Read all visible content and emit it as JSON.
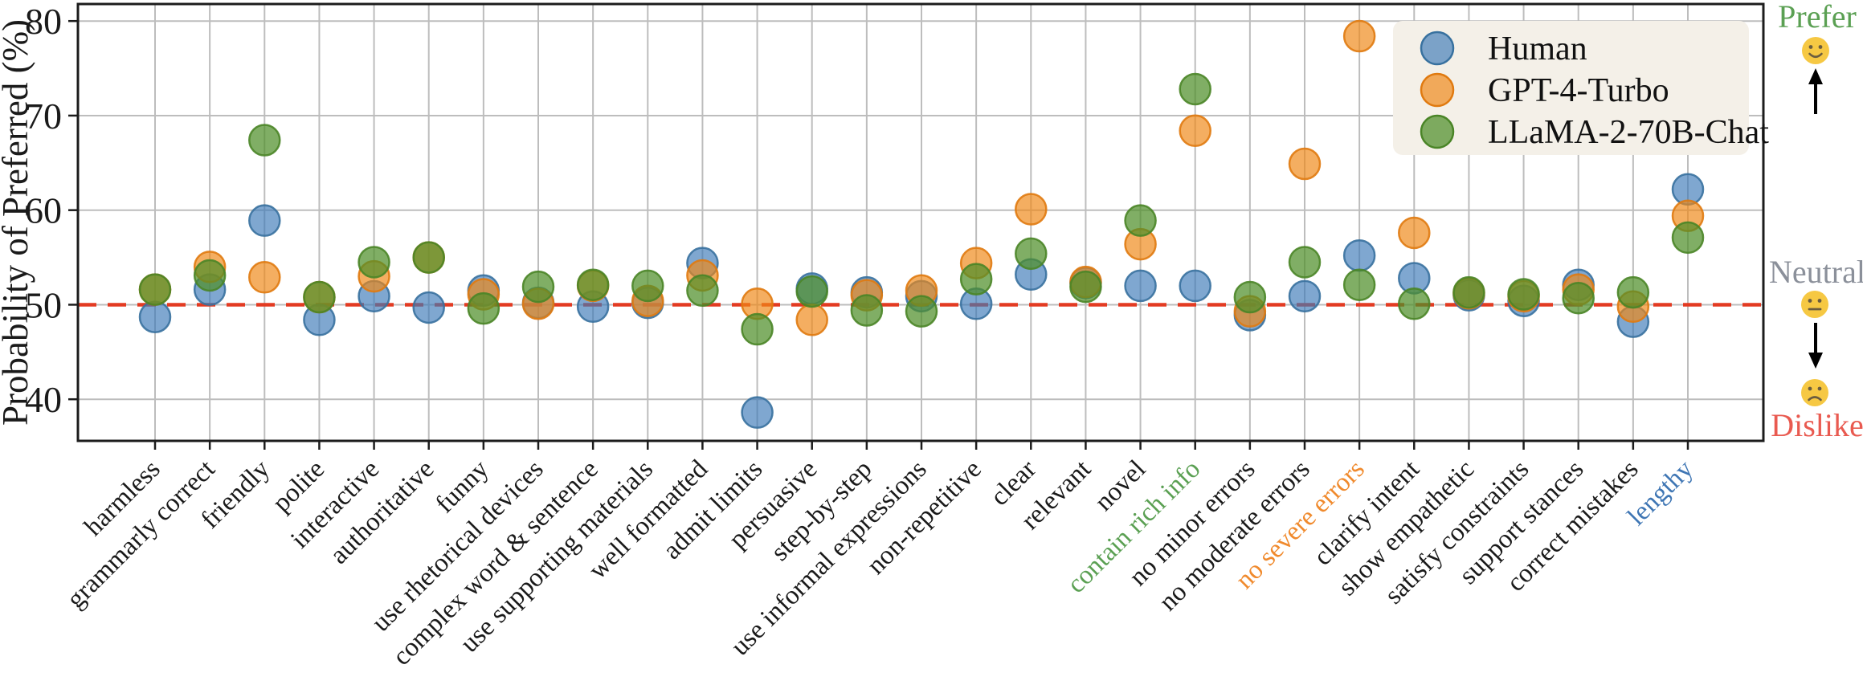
{
  "figure": {
    "ylabel": "Probability of Preferred (%)",
    "yticks": [
      "40",
      "50",
      "60",
      "70",
      "80"
    ],
    "ytick_values": [
      40,
      50,
      60,
      70,
      80
    ],
    "ylim": [
      35.6,
      81.8
    ],
    "baseline_value": 50,
    "grid": true,
    "legend_position": "upper-right",
    "colors": {
      "grid": "#bdbdbd",
      "spine": "#1c1c1c",
      "baseline_red": "#e33b22",
      "legend_bg": "#f4f0e8",
      "tick_label": "#1a1a1a",
      "prefer_green": "#5ba053",
      "neutral_gray": "#8b909a",
      "dislike_red": "#e95a50",
      "label_orange": "#f08a2d",
      "label_blue": "#3f76b4",
      "emoji_face": "#f6c843",
      "emoji_features": "#6a5c3f",
      "arrow_black": "#000000"
    },
    "annotations": {
      "prefer_label": "Prefer",
      "neutral_label": "Neutral",
      "dislike_label": "Dislike",
      "prefer_icon": "smiley-face-icon",
      "neutral_icon": "neutral-face-icon",
      "dislike_icon": "sad-face-icon"
    }
  },
  "chart_data": {
    "type": "scatter",
    "title": "",
    "xlabel": "",
    "ylabel": "Probability of Preferred (%)",
    "ylim": [
      35.6,
      81.8
    ],
    "baseline": 50,
    "categories": [
      "harmless",
      "grammarly correct",
      "friendly",
      "polite",
      "interactive",
      "authoritative",
      "funny",
      "use rhetorical devices",
      "complex word & sentence",
      "use supporting materials",
      "well formatted",
      "admit limits",
      "persuasive",
      "step-by-step",
      "use informal expressions",
      "non-repetitive",
      "clear",
      "relevant",
      "novel",
      "contain rich info",
      "no minor errors",
      "no moderate errors",
      "no severe errors",
      "clarify intent",
      "show empathetic",
      "satisfy constraints",
      "support stances",
      "correct mistakes",
      "lengthy"
    ],
    "category_label_colors": {
      "contain rich info": "#5ba053",
      "no severe errors": "#f08a2d",
      "lengthy": "#3f76b4"
    },
    "series": [
      {
        "name": "Human",
        "fill": "#3d7ab8",
        "fill_opacity": 0.66,
        "stroke": "#38719f",
        "values": [
          48.7,
          51.6,
          58.9,
          48.4,
          50.9,
          49.7,
          51.5,
          50.2,
          49.8,
          50.2,
          54.4,
          38.6,
          51.7,
          51.3,
          50.9,
          50.1,
          53.2,
          52.3,
          52.0,
          52.0,
          48.9,
          50.9,
          55.2,
          52.8,
          51.0,
          50.4,
          52.1,
          48.2,
          62.2
        ]
      },
      {
        "name": "GPT-4-Turbo",
        "fill": "#ef8816",
        "fill_opacity": 0.68,
        "stroke": "#e07a10",
        "values": [
          51.6,
          54.0,
          52.9,
          50.8,
          53.0,
          55.0,
          51.1,
          50.1,
          52.0,
          50.4,
          53.1,
          50.1,
          48.4,
          51.0,
          51.5,
          54.4,
          60.1,
          52.4,
          56.4,
          68.4,
          49.3,
          64.9,
          78.4,
          57.6,
          51.2,
          50.9,
          51.6,
          49.8,
          59.4
        ]
      },
      {
        "name": "LLaMA-2-70B-Chat",
        "fill": "#4f8f2a",
        "fill_opacity": 0.72,
        "stroke": "#4a8527",
        "values": [
          51.6,
          53.1,
          67.4,
          50.8,
          54.5,
          55.0,
          49.6,
          51.9,
          52.1,
          52.0,
          51.5,
          47.4,
          51.4,
          49.4,
          49.3,
          52.7,
          55.4,
          51.9,
          58.9,
          72.8,
          50.8,
          54.5,
          52.1,
          50.1,
          51.3,
          51.1,
          50.7,
          51.3,
          57.1
        ]
      }
    ]
  }
}
